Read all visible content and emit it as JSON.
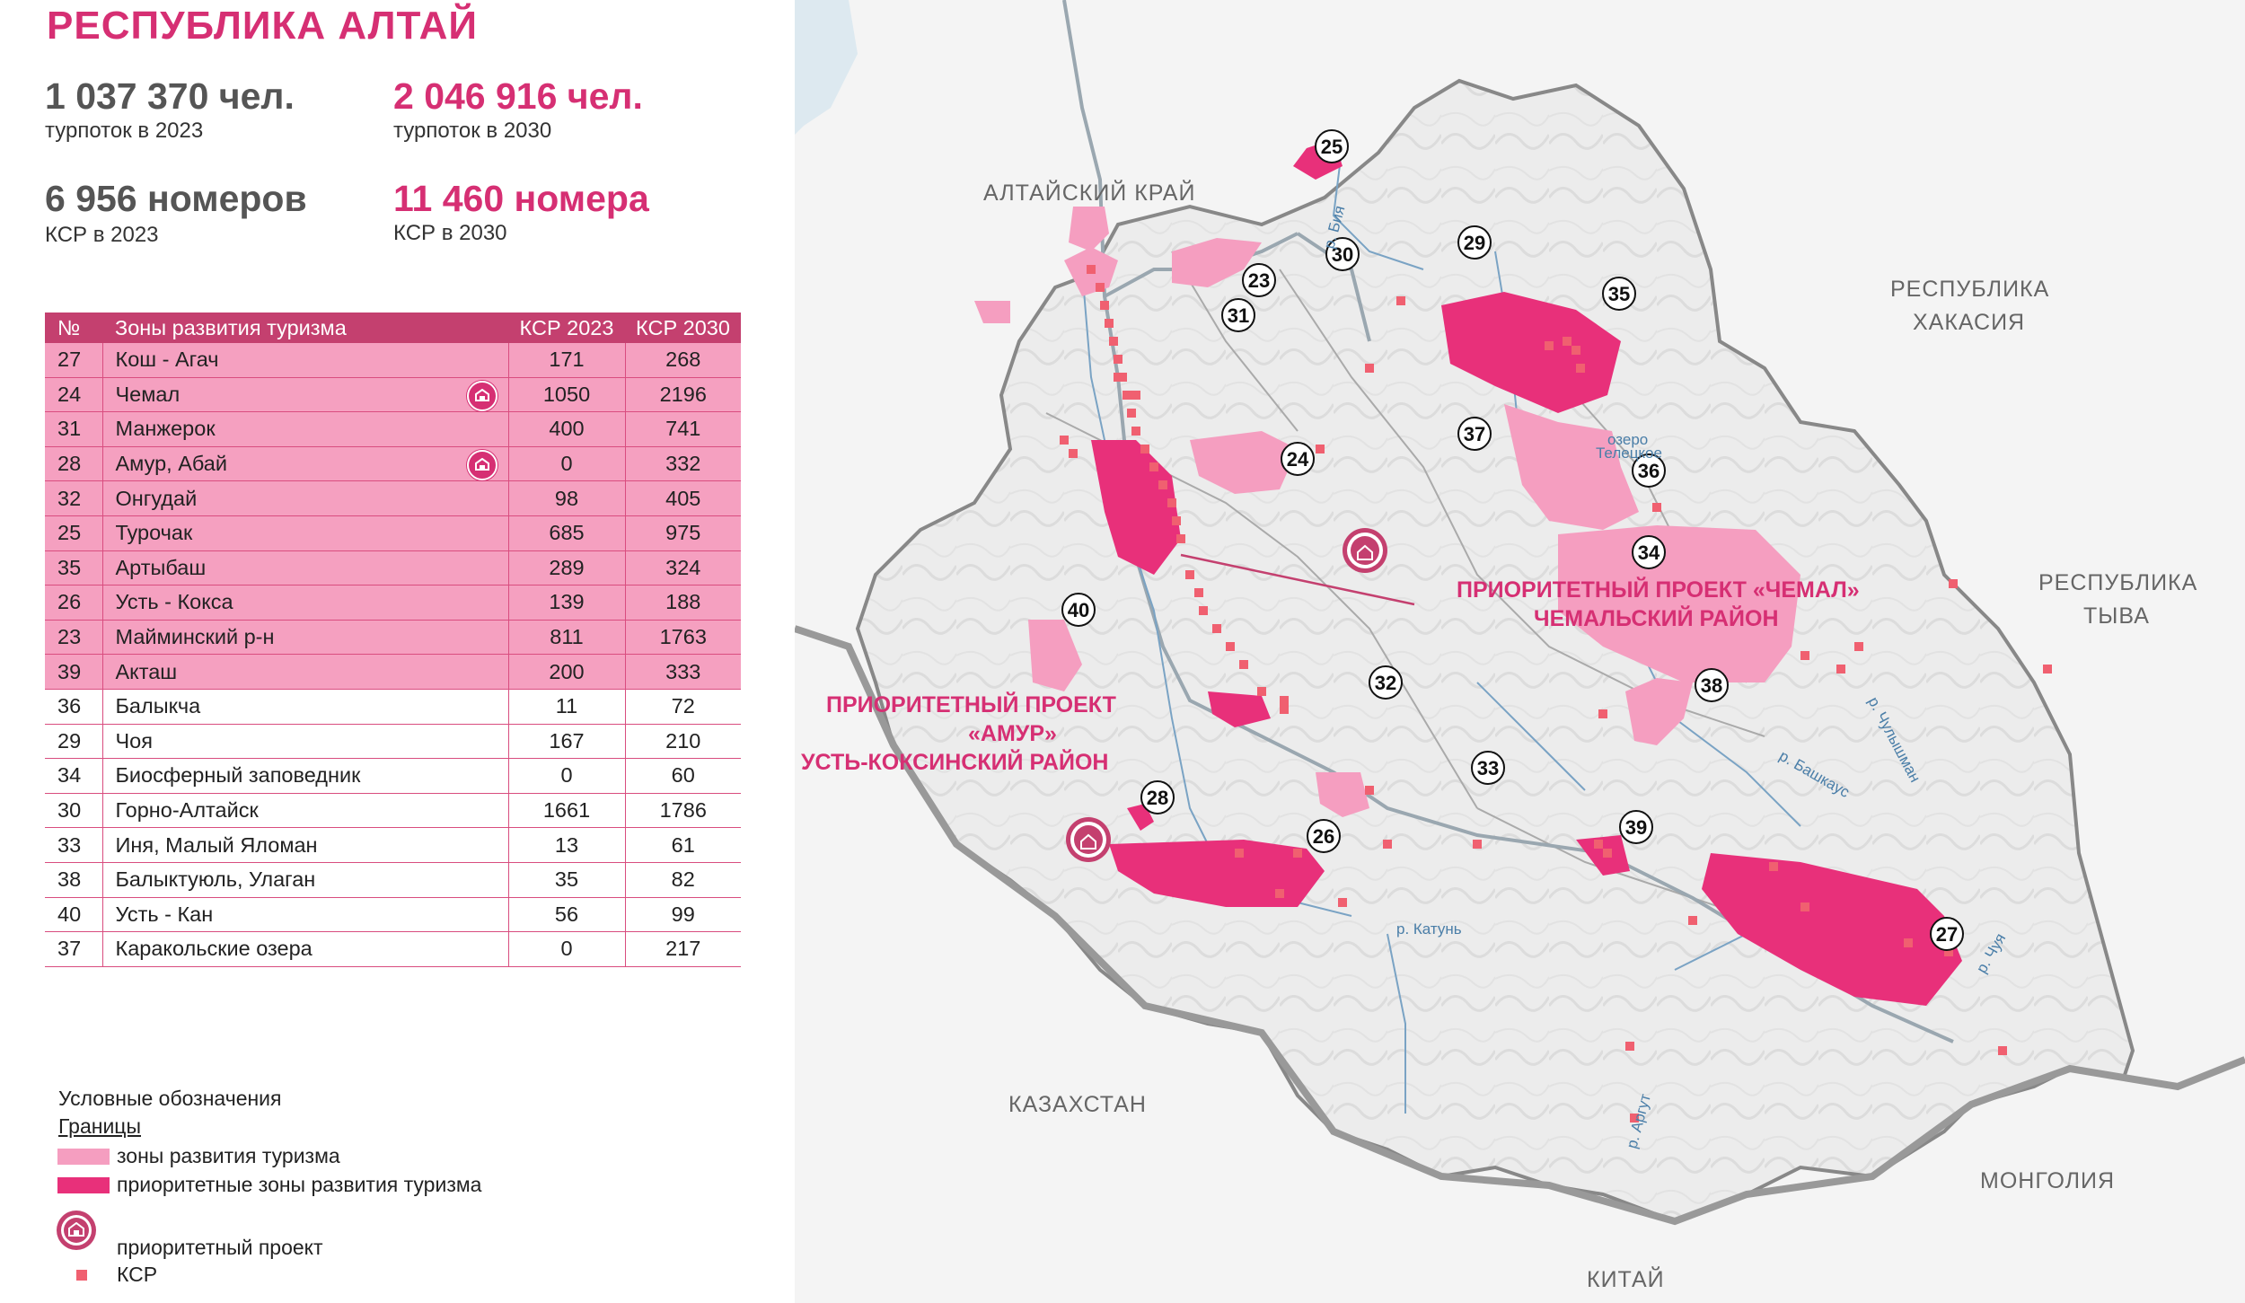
{
  "header": {
    "title": "РЕСПУБЛИКА АЛТАЙ",
    "stats": [
      {
        "value": "1 037 370 чел.",
        "label": "турпоток в 2023"
      },
      {
        "value": "2 046 916 чел.",
        "label": "турпоток в 2030"
      },
      {
        "value": "6 956 номеров",
        "label": "КСР в 2023"
      },
      {
        "value": "11 460 номера",
        "label": "КСР в 2030"
      }
    ]
  },
  "table": {
    "headers": [
      "№",
      "Зоны развития туризма",
      "КСР 2023",
      "КСР 2030"
    ],
    "rows": [
      {
        "n": "27",
        "name": "Кош - Агач",
        "k2023": "171",
        "k2030": "268",
        "hl": true,
        "proj": false
      },
      {
        "n": "24",
        "name": "Чемал",
        "k2023": "1050",
        "k2030": "2196",
        "hl": true,
        "proj": true
      },
      {
        "n": "31",
        "name": "Манжерок",
        "k2023": "400",
        "k2030": "741",
        "hl": true,
        "proj": false
      },
      {
        "n": "28",
        "name": "Амур, Абай",
        "k2023": "0",
        "k2030": "332",
        "hl": true,
        "proj": true
      },
      {
        "n": "32",
        "name": "Онгудай",
        "k2023": "98",
        "k2030": "405",
        "hl": true,
        "proj": false
      },
      {
        "n": "25",
        "name": "Турочак",
        "k2023": "685",
        "k2030": "975",
        "hl": true,
        "proj": false
      },
      {
        "n": "35",
        "name": "Артыбаш",
        "k2023": "289",
        "k2030": "324",
        "hl": true,
        "proj": false
      },
      {
        "n": "26",
        "name": "Усть - Кокса",
        "k2023": "139",
        "k2030": "188",
        "hl": true,
        "proj": false
      },
      {
        "n": "23",
        "name": "Майминский р-н",
        "k2023": "811",
        "k2030": "1763",
        "hl": true,
        "proj": false
      },
      {
        "n": "39",
        "name": "Акташ",
        "k2023": "200",
        "k2030": "333",
        "hl": true,
        "proj": false
      },
      {
        "n": "36",
        "name": "Балыкча",
        "k2023": "11",
        "k2030": "72",
        "hl": false,
        "proj": false
      },
      {
        "n": "29",
        "name": "Чоя",
        "k2023": "167",
        "k2030": "210",
        "hl": false,
        "proj": false
      },
      {
        "n": "34",
        "name": "Биосферный заповедник",
        "k2023": "0",
        "k2030": "60",
        "hl": false,
        "proj": false
      },
      {
        "n": "30",
        "name": "Горно-Алтайск",
        "k2023": "1661",
        "k2030": "1786",
        "hl": false,
        "proj": false
      },
      {
        "n": "33",
        "name": "Иня, Малый Яломан",
        "k2023": "13",
        "k2030": "61",
        "hl": false,
        "proj": false
      },
      {
        "n": "38",
        "name": "Балыктуюль, Улаган",
        "k2023": "35",
        "k2030": "82",
        "hl": false,
        "proj": false
      },
      {
        "n": "40",
        "name": "Усть - Кан",
        "k2023": "56",
        "k2030": "99",
        "hl": false,
        "proj": false
      },
      {
        "n": "37",
        "name": "Каракольские озера",
        "k2023": "0",
        "k2030": "217",
        "hl": false,
        "proj": false
      }
    ]
  },
  "legend": {
    "title": "Условные обозначения",
    "borders": "Границы",
    "zones": "зоны развития туризма",
    "priority_zones": "приоритетные зоны развития туризма",
    "project": "приоритетный проект",
    "ksr": "КСР",
    "colors": {
      "zone": "#f59ec0",
      "priority": "#e8307a",
      "ksr": "#f06070"
    }
  },
  "map": {
    "neighbors": [
      "АЛТАЙСКИЙ КРАЙ",
      "РЕСПУБЛИКА",
      "ХАКАСИЯ",
      "РЕСПУБЛИКА",
      "ТЫВА",
      "КАЗАХСТАН",
      "МОНГОЛИЯ",
      "КИТАЙ"
    ],
    "rivers": [
      "р. Бия",
      "р. Катунь",
      "р. Чулышман",
      "р. Башкаус",
      "р. Чуя",
      "р. Аргут"
    ],
    "lake": [
      "озеро",
      "Телецкое"
    ],
    "projects": [
      {
        "lines": [
          "ПРИОРИТЕТНЫЙ ПРОЕКТ «ЧЕМАЛ»",
          "ЧЕМАЛЬСКИЙ РАЙОН"
        ]
      },
      {
        "lines": [
          "ПРИОРИТЕТНЫЙ ПРОЕКТ",
          "«АМУР»",
          "УСТЬ-КОКСИНСКИЙ РАЙОН"
        ]
      }
    ],
    "zone_numbers": [
      "23",
      "24",
      "25",
      "26",
      "27",
      "28",
      "29",
      "30",
      "31",
      "32",
      "33",
      "34",
      "35",
      "36",
      "37",
      "38",
      "39",
      "40"
    ]
  }
}
